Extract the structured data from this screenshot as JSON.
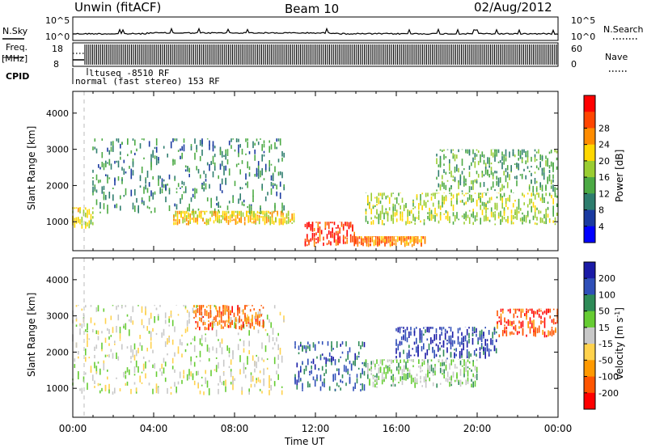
{
  "header": {
    "station": "Unwin (fitACF)",
    "beam": "Beam 10",
    "date": "02/Aug/2012"
  },
  "strips": {
    "nsky_label": "N.Sky",
    "nsearch_label": "N.Search",
    "nsky_ticks": [
      "10^5",
      "10^0"
    ],
    "nsearch_ticks": [
      "10^5",
      "10^0"
    ],
    "freq_label": "Freq.",
    "freq_unit": "[MHz]",
    "freq_ticks": [
      "18",
      "8"
    ],
    "nave_label": "Nave",
    "nave_ticks": [
      "60",
      "0"
    ],
    "cpid_label": "CPID",
    "cpid_entries": [
      "ltuseq -8510 RF",
      "normal (fast stereo) 153 RF"
    ]
  },
  "colors": {
    "power": [
      "#0000ff",
      "#1a3aa0",
      "#2e7d6e",
      "#4caa44",
      "#9acd32",
      "#ffd700",
      "#ff8c00",
      "#ff4500",
      "#ff0000"
    ],
    "velocity": [
      "#1a1aa6",
      "#2f4fb8",
      "#2e8b57",
      "#66cc33",
      "#c8c8c8",
      "#ffd24d",
      "#ff9900",
      "#ff5500",
      "#ff0000"
    ]
  },
  "chart_data": [
    {
      "type": "heatmap",
      "title": "",
      "xlabel": "Time UT",
      "ylabel": "Slant Range [km]",
      "x_ticks": [
        "00:00",
        "04:00",
        "08:00",
        "12:00",
        "16:00",
        "20:00",
        "00:00"
      ],
      "y_ticks": [
        "1000",
        "2000",
        "3000",
        "4000"
      ],
      "ylim": [
        200,
        4600
      ],
      "colorbar_label": "Power [dB]",
      "colorbar_ticks": [
        "4",
        "8",
        "12",
        "16",
        "20",
        "24",
        "28"
      ],
      "colorbar_range": [
        0,
        32
      ],
      "scatter_regions": [
        {
          "t_start": 0.0,
          "t_end": 1.0,
          "r_min": 800,
          "r_max": 1400,
          "value": 18
        },
        {
          "t_start": 1.0,
          "t_end": 10.5,
          "r_min": 1200,
          "r_max": 3300,
          "value": 10
        },
        {
          "t_start": 5.0,
          "t_end": 11.0,
          "r_min": 900,
          "r_max": 1300,
          "value": 20
        },
        {
          "t_start": 11.5,
          "t_end": 14.0,
          "r_min": 300,
          "r_max": 1000,
          "value": 28
        },
        {
          "t_start": 14.0,
          "t_end": 17.5,
          "r_min": 300,
          "r_max": 600,
          "value": 24
        },
        {
          "t_start": 14.5,
          "t_end": 24.0,
          "r_min": 900,
          "r_max": 1800,
          "value": 16
        },
        {
          "t_start": 18.0,
          "t_end": 24.0,
          "r_min": 1800,
          "r_max": 3000,
          "value": 12
        }
      ]
    },
    {
      "type": "heatmap",
      "title": "",
      "xlabel": "Time UT",
      "ylabel": "Slant Range [km]",
      "x_ticks": [
        "00:00",
        "04:00",
        "08:00",
        "12:00",
        "16:00",
        "20:00",
        "00:00"
      ],
      "y_ticks": [
        "1000",
        "2000",
        "3000",
        "4000"
      ],
      "ylim": [
        200,
        4600
      ],
      "colorbar_label": "Velocity [m s^-1]",
      "colorbar_ticks": [
        "200",
        "100",
        "50",
        "15",
        "-15",
        "-50",
        "-100",
        "-200"
      ],
      "colorbar_range": [
        -250,
        250
      ],
      "scatter_regions": [
        {
          "t_start": 0.0,
          "t_end": 10.5,
          "r_min": 800,
          "r_max": 3300,
          "value": 0
        },
        {
          "t_start": 6.0,
          "t_end": 9.5,
          "r_min": 2600,
          "r_max": 3300,
          "value": -150
        },
        {
          "t_start": 11.0,
          "t_end": 14.5,
          "r_min": 900,
          "r_max": 2300,
          "value": 150
        },
        {
          "t_start": 14.5,
          "t_end": 20.0,
          "r_min": 1000,
          "r_max": 1800,
          "value": 40
        },
        {
          "t_start": 16.0,
          "t_end": 21.0,
          "r_min": 1800,
          "r_max": 2700,
          "value": 180
        },
        {
          "t_start": 21.0,
          "t_end": 24.0,
          "r_min": 2400,
          "r_max": 3200,
          "value": -180
        }
      ]
    }
  ]
}
